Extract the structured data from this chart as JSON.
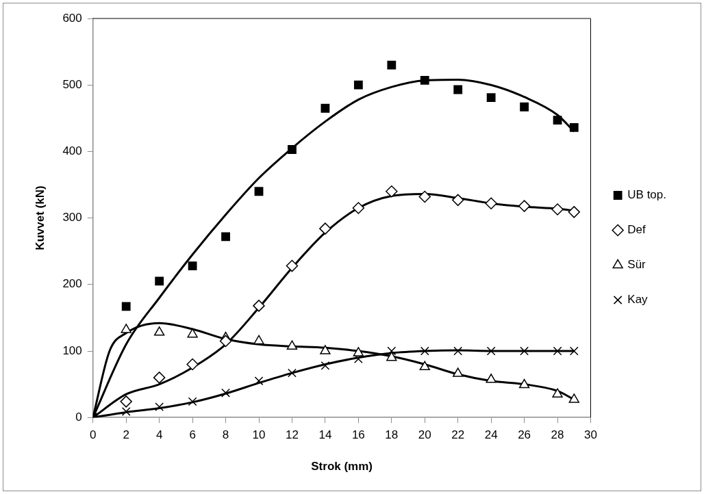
{
  "chart_data": {
    "type": "scatter",
    "xlabel": "Strok (mm)",
    "ylabel": "Kuvvet (kN)",
    "x": [
      0,
      2,
      4,
      6,
      8,
      10,
      12,
      14,
      16,
      18,
      20,
      22,
      24,
      26,
      28,
      29
    ],
    "xlim": [
      0,
      30
    ],
    "xticks": [
      0,
      2,
      4,
      6,
      8,
      10,
      12,
      14,
      16,
      18,
      20,
      22,
      24,
      26,
      28,
      30
    ],
    "ylim": [
      0,
      600
    ],
    "yticks": [
      0,
      100,
      200,
      300,
      400,
      500,
      600
    ],
    "grid": false,
    "legend": "right",
    "series": [
      {
        "name": "UB top.",
        "color": "#000000",
        "marker": "square",
        "values": [
          0,
          167,
          205,
          228,
          272,
          340,
          403,
          465,
          500,
          530,
          507,
          493,
          481,
          467,
          447,
          436
        ]
      },
      {
        "name": "Def",
        "color": "#000000",
        "marker": "diamond",
        "values": [
          null,
          24,
          60,
          80,
          115,
          168,
          228,
          284,
          315,
          340,
          332,
          327,
          322,
          318,
          313,
          309
        ]
      },
      {
        "name": "Sür",
        "color": "#000000",
        "marker": "triangle",
        "values": [
          null,
          132,
          128,
          125,
          120,
          115,
          107,
          100,
          97,
          90,
          76,
          66,
          57,
          49,
          35,
          27
        ]
      },
      {
        "name": "Kay",
        "color": "#000000",
        "marker": "cross",
        "values": [
          null,
          9,
          16,
          24,
          37,
          55,
          67,
          78,
          88,
          100,
          100,
          100,
          100,
          100,
          100,
          100
        ]
      },
      {
        "type": "line",
        "color": "#000000",
        "marker": "none",
        "x": [
          0,
          2,
          4,
          6,
          8,
          10,
          12,
          14,
          16,
          18,
          20,
          22,
          24,
          26,
          28,
          29
        ],
        "values": [
          0,
          110,
          180,
          245,
          305,
          360,
          405,
          445,
          478,
          497,
          507,
          508,
          500,
          482,
          455,
          430
        ]
      },
      {
        "type": "line",
        "color": "#000000",
        "marker": "none",
        "x": [
          0,
          2,
          4,
          6,
          8,
          10,
          12,
          14,
          16,
          18,
          20,
          22,
          24,
          26,
          28,
          29
        ],
        "values": [
          0,
          35,
          50,
          75,
          110,
          165,
          225,
          278,
          315,
          333,
          336,
          330,
          322,
          317,
          314,
          311
        ]
      },
      {
        "type": "line",
        "color": "#000000",
        "marker": "none",
        "x": [
          0,
          1,
          2,
          4,
          6,
          8,
          10,
          12,
          14,
          16,
          18,
          20,
          22,
          24,
          26,
          28,
          29
        ],
        "values": [
          0,
          100,
          127,
          142,
          133,
          118,
          110,
          107,
          105,
          100,
          92,
          80,
          65,
          55,
          50,
          40,
          27
        ]
      },
      {
        "type": "line",
        "color": "#000000",
        "marker": "none",
        "x": [
          0,
          2,
          4,
          6,
          8,
          10,
          12,
          14,
          16,
          18,
          20,
          22,
          24,
          26,
          28,
          29
        ],
        "values": [
          0,
          8,
          14,
          23,
          36,
          52,
          67,
          80,
          90,
          97,
          100,
          101,
          100,
          100,
          100,
          100
        ]
      }
    ]
  }
}
